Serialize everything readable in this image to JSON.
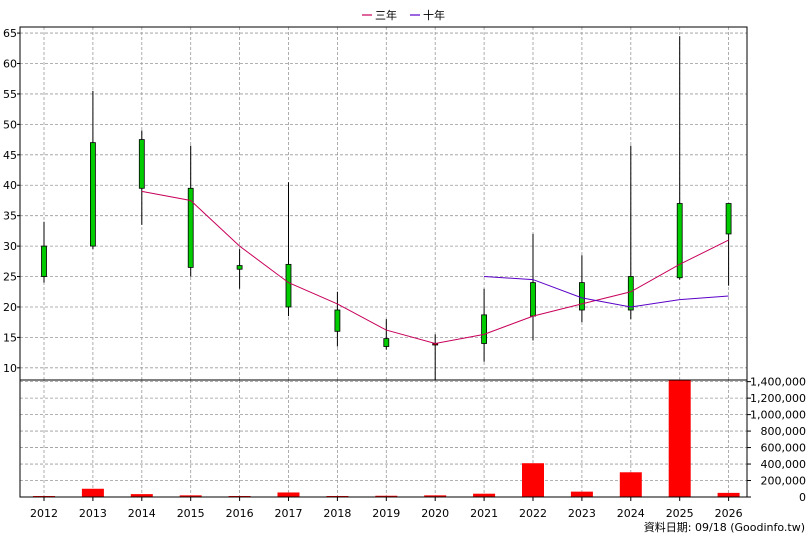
{
  "legend": [
    {
      "name": "三年",
      "color": "#c8005a"
    },
    {
      "name": "十年",
      "color": "#5a00c8"
    }
  ],
  "footer": {
    "date_label": "資料日期: 09/18  (Goodinfo.tw)"
  },
  "chart_data": [
    {
      "type": "candlestick",
      "panel": "price",
      "x": [
        "2012",
        "2013",
        "2014",
        "2015",
        "2016",
        "2017",
        "2018",
        "2019",
        "2020",
        "2021",
        "2022",
        "2023",
        "2024",
        "2025",
        "2026"
      ],
      "open": [
        25,
        30,
        39.5,
        26.5,
        26.2,
        20,
        16,
        13.5,
        14,
        14,
        18.5,
        19.5,
        19.5,
        24.8,
        32
      ],
      "high": [
        34,
        55.5,
        49,
        46.5,
        29.5,
        40.5,
        22.5,
        18,
        15.5,
        23,
        32,
        28.5,
        46.5,
        64.5,
        37
      ],
      "low": [
        24,
        29.5,
        33.5,
        25,
        23,
        18.5,
        13.5,
        13,
        8,
        11,
        14.5,
        17.5,
        18,
        24.5,
        23.5
      ],
      "close": [
        30,
        47,
        47.5,
        39.5,
        26.8,
        27,
        19.5,
        14.8,
        13.8,
        18.7,
        24,
        24,
        25,
        37,
        37
      ],
      "up_color": "#00cc00",
      "down_color": "#cc0000",
      "yticks": [
        10,
        15,
        20,
        25,
        30,
        35,
        40,
        45,
        50,
        55,
        60,
        65
      ],
      "ylim": [
        8,
        66
      ],
      "grid": true,
      "legend_position": "top-center",
      "series": [
        {
          "name": "三年",
          "color": "#c8005a",
          "values": [
            null,
            null,
            39,
            37.5,
            30,
            24,
            20.5,
            16.2,
            14,
            15.5,
            18.5,
            20.5,
            22.5,
            27,
            31
          ]
        },
        {
          "name": "十年",
          "color": "#5a00c8",
          "values": [
            null,
            null,
            null,
            null,
            null,
            null,
            null,
            null,
            null,
            25,
            24.5,
            21.5,
            20,
            21.2,
            21.8
          ]
        }
      ]
    },
    {
      "type": "bar",
      "panel": "volume",
      "categories": [
        "2012",
        "2013",
        "2014",
        "2015",
        "2016",
        "2017",
        "2018",
        "2019",
        "2020",
        "2021",
        "2022",
        "2023",
        "2024",
        "2025",
        "2026"
      ],
      "values": [
        5000,
        100000,
        35000,
        20000,
        8000,
        55000,
        8000,
        15000,
        20000,
        40000,
        410000,
        65000,
        300000,
        1420000,
        50000
      ],
      "color": "#ff0000",
      "yticks": [
        0,
        200000,
        400000,
        600000,
        800000,
        1000000,
        1200000,
        1400000
      ],
      "ytick_labels": [
        "0",
        "200,000",
        "400,000",
        "600,000",
        "800,000",
        "1,000,000",
        "1,200,000",
        "1,400,000"
      ],
      "ylim": [
        0,
        1420000
      ],
      "grid": true
    }
  ]
}
